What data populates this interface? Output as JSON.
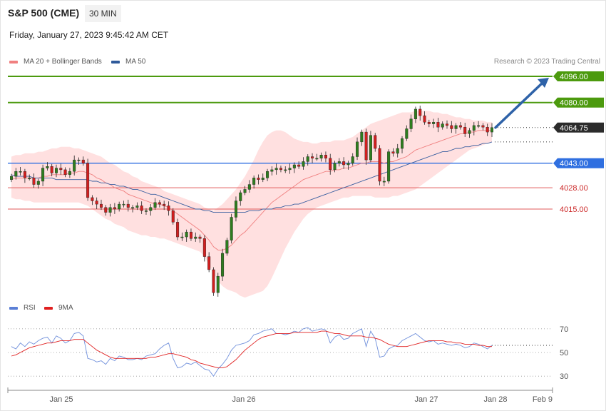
{
  "header": {
    "symbol": "S&P 500 (CME)",
    "timeframe": "30 MIN",
    "date": "Friday, January 27, 2023 9:45:42 AM CET"
  },
  "legend_main": [
    {
      "label": "MA 20 + Bollinger Bands",
      "color": "#f08080"
    },
    {
      "label": "MA 50",
      "color": "#2f5a9a"
    }
  ],
  "legend_rsi": [
    {
      "label": "RSI",
      "color": "#5b7fd6"
    },
    {
      "label": "9MA",
      "color": "#e02020"
    }
  ],
  "credit": "Research © 2023 Trading Central",
  "chart_data": [
    {
      "type": "candlestick",
      "levels": [
        {
          "label": "4096.00",
          "value": 4096,
          "kind": "target"
        },
        {
          "label": "4080.00",
          "value": 4080,
          "kind": "target"
        },
        {
          "label": "4064.75",
          "value": 4064.75,
          "kind": "last"
        },
        {
          "label": "4043.00",
          "value": 4043,
          "kind": "pivot"
        },
        {
          "label": "4028.00",
          "value": 4028,
          "kind": "support"
        },
        {
          "label": "4015.00",
          "value": 4015,
          "kind": "support"
        }
      ],
      "xticks": [
        "Jan 25",
        "Jan 26",
        "Jan 27",
        "Jan 28",
        "Feb 9"
      ],
      "close": [
        4035,
        4038,
        4038,
        4034,
        4034,
        4030,
        4032,
        4040,
        4041,
        4037,
        4040,
        4039,
        4036,
        4038,
        4045,
        4045,
        4043,
        4022,
        4020,
        4018,
        4016,
        4013,
        4016,
        4015,
        4018,
        4018,
        4016,
        4016,
        4017,
        4014,
        4014,
        4016,
        4019,
        4018,
        4017,
        4014,
        4007,
        3998,
        3998,
        4001,
        3997,
        3998,
        3997,
        3986,
        3978,
        3964,
        3974,
        3988,
        3996,
        4010,
        4020,
        4025,
        4027,
        4030,
        4034,
        4033,
        4034,
        4038,
        4039,
        4040,
        4039,
        4039,
        4040,
        4042,
        4041,
        4044,
        4047,
        4046,
        4046,
        4048,
        4046,
        4039,
        4043,
        4044,
        4042,
        4043,
        4047,
        4056,
        4062,
        4045,
        4060,
        4052,
        4032,
        4032,
        4050,
        4049,
        4052,
        4058,
        4064,
        4070,
        4076,
        4072,
        4068,
        4067,
        4068,
        4065,
        4067,
        4066,
        4064,
        4066,
        4065,
        4061,
        4063,
        4066,
        4066,
        4065,
        4062,
        4064.75
      ],
      "ma20": [
        4033,
        4034,
        4034,
        4034,
        4034,
        4034,
        4034,
        4035,
        4035,
        4036,
        4036,
        4036,
        4036,
        4037,
        4037,
        4038,
        4038,
        4037,
        4036,
        4034,
        4033,
        4031,
        4030,
        4028,
        4027,
        4026,
        4024,
        4023,
        4022,
        4021,
        4020,
        4019,
        4018,
        4018,
        4017,
        4016,
        4014,
        4012,
        4010,
        4008,
        4006,
        4004,
        4002,
        3999,
        3996,
        3992,
        3990,
        3990,
        3991,
        3993,
        3996,
        3999,
        4001,
        4004,
        4007,
        4010,
        4013,
        4016,
        4019,
        4021,
        4023,
        4025,
        4027,
        4029,
        4031,
        4033,
        4034,
        4035,
        4036,
        4037,
        4038,
        4038,
        4039,
        4039,
        4040,
        4040,
        4041,
        4042,
        4043,
        4043,
        4044,
        4044,
        4044,
        4043,
        4044,
        4044,
        4045,
        4046,
        4047,
        4049,
        4051,
        4052,
        4053,
        4054,
        4055,
        4056,
        4057,
        4058,
        4059,
        4060,
        4061,
        4061,
        4062,
        4062,
        4063,
        4063,
        4063,
        4063
      ],
      "ma50": [
        4036,
        4035,
        4035,
        4035,
        4035,
        4034,
        4034,
        4034,
        4034,
        4034,
        4033,
        4033,
        4033,
        4033,
        4033,
        4033,
        4033,
        4033,
        4032,
        4032,
        4031,
        4031,
        4030,
        4030,
        4029,
        4029,
        4028,
        4027,
        4027,
        4026,
        4025,
        4024,
        4024,
        4023,
        4022,
        4021,
        4020,
        4019,
        4018,
        4017,
        4016,
        4015,
        4015,
        4014,
        4014,
        4013,
        4013,
        4013,
        4013,
        4013,
        4013,
        4013,
        4013,
        4014,
        4014,
        4014,
        4015,
        4015,
        4015,
        4016,
        4016,
        4017,
        4017,
        4018,
        4018,
        4019,
        4020,
        4021,
        4022,
        4023,
        4024,
        4025,
        4026,
        4027,
        4028,
        4029,
        4030,
        4031,
        4032,
        4033,
        4034,
        4035,
        4036,
        4037,
        4038,
        4039,
        4040,
        4041,
        4042,
        4043,
        4044,
        4045,
        4046,
        4047,
        4048,
        4049,
        4050,
        4050,
        4051,
        4052,
        4052,
        4053,
        4053,
        4054,
        4054,
        4055,
        4055,
        4056
      ],
      "bb_upper": [
        4047,
        4048,
        4048,
        4049,
        4049,
        4049,
        4050,
        4050,
        4051,
        4052,
        4052,
        4053,
        4053,
        4053,
        4052,
        4052,
        4051,
        4050,
        4049,
        4048,
        4047,
        4045,
        4043,
        4042,
        4040,
        4038,
        4037,
        4035,
        4034,
        4032,
        4031,
        4030,
        4029,
        4028,
        4026,
        4025,
        4024,
        4023,
        4022,
        4021,
        4020,
        4019,
        4018,
        4016,
        4015,
        4014,
        4016,
        4018,
        4021,
        4024,
        4027,
        4031,
        4035,
        4040,
        4045,
        4051,
        4056,
        4060,
        4062,
        4063,
        4063,
        4062,
        4060,
        4058,
        4057,
        4056,
        4056,
        4055,
        4055,
        4056,
        4056,
        4056,
        4057,
        4057,
        4057,
        4058,
        4059,
        4061,
        4063,
        4065,
        4067,
        4068,
        4069,
        4070,
        4071,
        4072,
        4073,
        4074,
        4074,
        4074,
        4075,
        4075,
        4075,
        4075,
        4074,
        4074,
        4073,
        4073,
        4072,
        4071,
        4071,
        4070,
        4070,
        4069,
        4069,
        4069,
        4068,
        4068
      ],
      "bb_lower": [
        4022,
        4021,
        4021,
        4020,
        4020,
        4019,
        4019,
        4019,
        4019,
        4019,
        4019,
        4019,
        4019,
        4019,
        4019,
        4019,
        4018,
        4017,
        4015,
        4013,
        4011,
        4009,
        4008,
        4006,
        4005,
        4004,
        4002,
        4001,
        4000,
        3999,
        3999,
        3998,
        3998,
        3997,
        3997,
        3996,
        3995,
        3994,
        3993,
        3992,
        3991,
        3990,
        3989,
        3986,
        3981,
        3976,
        3971,
        3968,
        3966,
        3965,
        3964,
        3962,
        3961,
        3962,
        3963,
        3964,
        3965,
        3968,
        3973,
        3979,
        3985,
        3991,
        3996,
        4001,
        4005,
        4009,
        4012,
        4014,
        4016,
        4017,
        4018,
        4019,
        4020,
        4021,
        4022,
        4022,
        4023,
        4023,
        4023,
        4023,
        4023,
        4022,
        4022,
        4022,
        4022,
        4023,
        4023,
        4024,
        4025,
        4026,
        4027,
        4029,
        4031,
        4033,
        4035,
        4037,
        4039,
        4041,
        4043,
        4045,
        4047,
        4049,
        4051,
        4052,
        4053,
        4054,
        4055,
        4056
      ],
      "projection": {
        "from": 4064.75,
        "to": 4096
      }
    },
    {
      "type": "line",
      "name_series": [
        "RSI",
        "9MA"
      ],
      "yticks": [
        70,
        50,
        30
      ],
      "rsi": [
        55,
        53,
        58,
        55,
        59,
        57,
        60,
        62,
        63,
        58,
        64,
        62,
        58,
        60,
        66,
        67,
        64,
        45,
        44,
        42,
        43,
        40,
        45,
        43,
        47,
        46,
        44,
        44,
        45,
        44,
        47,
        48,
        49,
        53,
        56,
        58,
        45,
        37,
        38,
        41,
        40,
        42,
        39,
        36,
        35,
        30,
        36,
        40,
        45,
        52,
        56,
        57,
        58,
        60,
        65,
        66,
        68,
        69,
        70,
        66,
        66,
        65,
        66,
        68,
        67,
        70,
        71,
        68,
        69,
        70,
        69,
        58,
        63,
        65,
        61,
        62,
        66,
        68,
        70,
        55,
        68,
        62,
        46,
        47,
        53,
        55,
        56,
        60,
        62,
        64,
        66,
        63,
        60,
        59,
        60,
        57,
        58,
        57,
        56,
        57,
        56,
        54,
        55,
        58,
        57,
        55,
        53,
        56
      ],
      "ma9": [
        47,
        48,
        50,
        52,
        54,
        55,
        56,
        57,
        58,
        58,
        59,
        60,
        60,
        60,
        61,
        61,
        61,
        58,
        55,
        52,
        50,
        48,
        46,
        45,
        45,
        45,
        45,
        45,
        45,
        45,
        45,
        46,
        46,
        47,
        48,
        49,
        49,
        48,
        47,
        46,
        44,
        43,
        41,
        40,
        39,
        38,
        37,
        37,
        38,
        41,
        44,
        48,
        52,
        55,
        58,
        61,
        63,
        64,
        65,
        66,
        66,
        66,
        66,
        67,
        67,
        67,
        67,
        67,
        67,
        68,
        68,
        67,
        66,
        66,
        65,
        64,
        64,
        64,
        64,
        63,
        63,
        62,
        61,
        59,
        57,
        56,
        55,
        55,
        55,
        56,
        57,
        58,
        59,
        60,
        60,
        60,
        60,
        59,
        59,
        58,
        58,
        57,
        57,
        57,
        56,
        56,
        55,
        55
      ]
    }
  ]
}
